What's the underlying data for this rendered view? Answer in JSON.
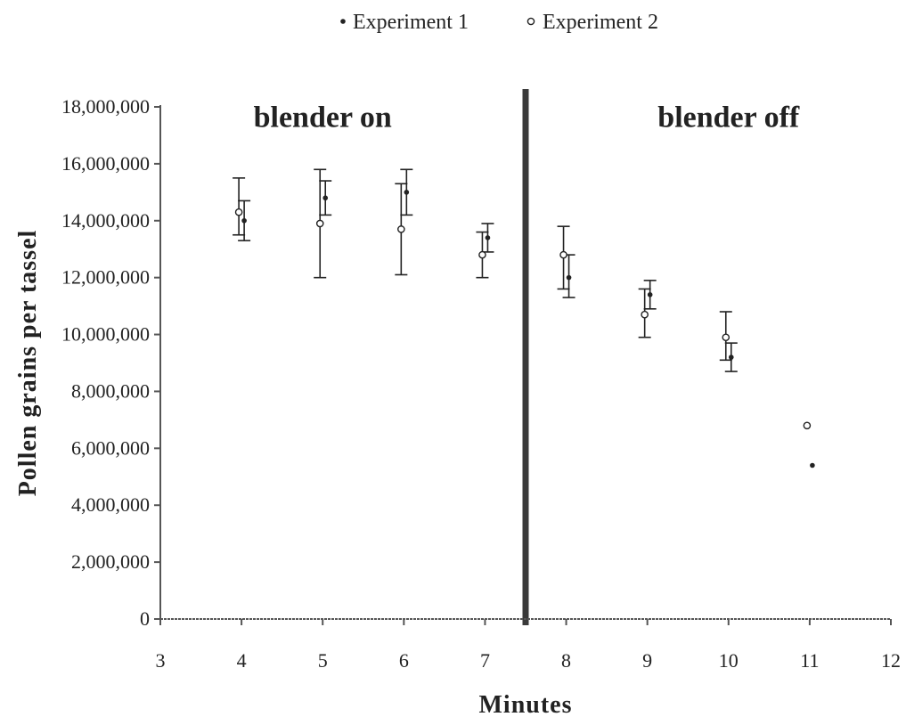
{
  "chart_data": {
    "type": "scatter",
    "title": "",
    "xlabel": "Minutes",
    "ylabel": "Pollen grains per tassel",
    "xlim": [
      3,
      12
    ],
    "ylim": [
      0,
      18000000
    ],
    "x_ticks": [
      3,
      4,
      5,
      6,
      7,
      8,
      9,
      10,
      11,
      12
    ],
    "y_ticks": [
      0,
      2000000,
      4000000,
      6000000,
      8000000,
      10000000,
      12000000,
      14000000,
      16000000,
      18000000
    ],
    "y_tick_labels": [
      "0",
      "2,000,000",
      "4,000,000",
      "6,000,000",
      "8,000,000",
      "10,000,000",
      "12,000,000",
      "14,000,000",
      "16,000,000",
      "18,000,000"
    ],
    "legend_position": "top-center",
    "grid": false,
    "series": [
      {
        "name": "Experiment 1",
        "points": [
          {
            "x": 4,
            "y": 14000000,
            "err_low": 13300000,
            "err_high": 14700000
          },
          {
            "x": 5,
            "y": 14800000,
            "err_low": 14200000,
            "err_high": 15400000
          },
          {
            "x": 6,
            "y": 15000000,
            "err_low": 14200000,
            "err_high": 15800000
          },
          {
            "x": 7,
            "y": 13400000,
            "err_low": 12900000,
            "err_high": 13900000
          },
          {
            "x": 8,
            "y": 12000000,
            "err_low": 11300000,
            "err_high": 12800000
          },
          {
            "x": 9,
            "y": 11400000,
            "err_low": 10900000,
            "err_high": 11900000
          },
          {
            "x": 10,
            "y": 9200000,
            "err_low": 8700000,
            "err_high": 9700000
          },
          {
            "x": 11,
            "y": 5400000
          }
        ]
      },
      {
        "name": "Experiment 2",
        "points": [
          {
            "x": 4,
            "y": 14300000,
            "err_low": 13500000,
            "err_high": 15500000
          },
          {
            "x": 5,
            "y": 13900000,
            "err_low": 12000000,
            "err_high": 15800000
          },
          {
            "x": 6,
            "y": 13700000,
            "err_low": 12100000,
            "err_high": 15300000
          },
          {
            "x": 7,
            "y": 12800000,
            "err_low": 12000000,
            "err_high": 13600000
          },
          {
            "x": 8,
            "y": 12800000,
            "err_low": 11600000,
            "err_high": 13800000
          },
          {
            "x": 9,
            "y": 10700000,
            "err_low": 9900000,
            "err_high": 11600000
          },
          {
            "x": 10,
            "y": 9900000,
            "err_low": 9100000,
            "err_high": 10800000
          },
          {
            "x": 11,
            "y": 6800000
          }
        ]
      }
    ],
    "divider_x": 7.5,
    "annotations": [
      {
        "text": "blender on",
        "x": 5,
        "y": 17300000
      },
      {
        "text": "blender off",
        "x": 10,
        "y": 17300000
      }
    ]
  },
  "colors": {
    "ink": "#222222",
    "axis": "#555555",
    "divider": "#3a3a3a",
    "background": "#ffffff"
  }
}
